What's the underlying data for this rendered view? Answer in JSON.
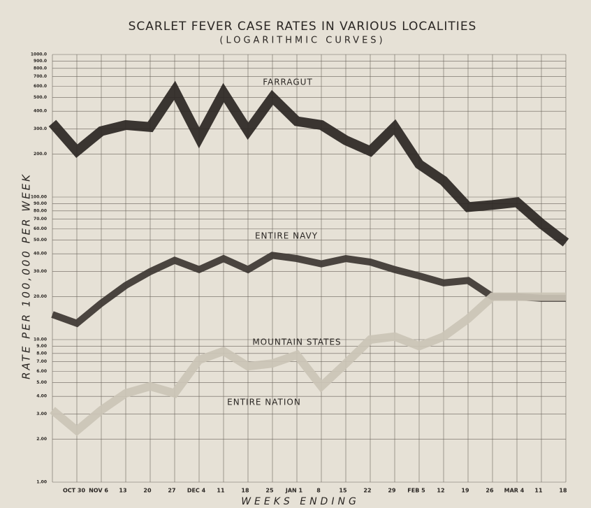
{
  "chart_data": {
    "type": "line",
    "title": "SCARLET FEVER CASE RATES IN VARIOUS LOCALITIES",
    "subtitle": "(LOGARITHMIC CURVES)",
    "x_label": "WEEKS ENDING",
    "y_label": "RATE PER 100,000 PER WEEK",
    "log_y": true,
    "grid": true,
    "categories": [
      null,
      "OCT 30",
      "NOV 6",
      "13",
      "20",
      "27",
      "DEC 4",
      "11",
      "18",
      "25",
      "JAN 1",
      "8",
      "15",
      "22",
      "29",
      "FEB 5",
      "12",
      "19",
      "26",
      "MAR 4",
      "11",
      "18"
    ],
    "series": [
      {
        "name": "FARRAGUT",
        "color": "#2b2623",
        "values": [
          330,
          210,
          290,
          320,
          310,
          560,
          260,
          540,
          290,
          500,
          340,
          320,
          250,
          210,
          310,
          170,
          130,
          85,
          88,
          92,
          65,
          48
        ]
      },
      {
        "name": "ENTIRE NAVY",
        "color": "#3d3632",
        "values": [
          15,
          13,
          18,
          24,
          30,
          36,
          31,
          37,
          31,
          39,
          37,
          34,
          37,
          35,
          31,
          28,
          25,
          26,
          20,
          20,
          19.5,
          19.5
        ]
      },
      {
        "name": "MOUNTAIN STATES",
        "color": "#cbc4b6",
        "values": [
          3.2,
          2.3,
          3.2,
          4.2,
          4.7,
          4.2,
          7.2,
          8.3,
          6.5,
          6.8,
          7.8,
          4.7,
          6.8,
          10,
          10.5,
          9,
          10.5,
          14,
          20,
          20,
          20,
          20
        ]
      }
    ],
    "annotations": [
      "FARRAGUT",
      "ENTIRE NAVY",
      "MOUNTAIN STATES",
      "ENTIRE NATION"
    ],
    "ylim": [
      1,
      1000
    ],
    "yticks": [
      {
        "value": 1,
        "label": "1.00"
      },
      {
        "value": 2,
        "label": "2.00"
      },
      {
        "value": 3,
        "label": "3.00"
      },
      {
        "value": 4,
        "label": "4.00"
      },
      {
        "value": 5,
        "label": "5.00"
      },
      {
        "value": 6,
        "label": "6.00"
      },
      {
        "value": 7,
        "label": "7.00"
      },
      {
        "value": 8,
        "label": "8.00"
      },
      {
        "value": 9,
        "label": "9.00"
      },
      {
        "value": 10,
        "label": "10.00"
      },
      {
        "value": 20,
        "label": "20.00"
      },
      {
        "value": 30,
        "label": "30.00"
      },
      {
        "value": 40,
        "label": "40.00"
      },
      {
        "value": 50,
        "label": "50.00"
      },
      {
        "value": 60,
        "label": "60.00"
      },
      {
        "value": 70,
        "label": "70.00"
      },
      {
        "value": 80,
        "label": "80.00"
      },
      {
        "value": 90,
        "label": "90.00"
      },
      {
        "value": 100,
        "label": "100.00"
      },
      {
        "value": 200,
        "label": "200.0"
      },
      {
        "value": 300,
        "label": "300.0"
      },
      {
        "value": 400,
        "label": "400.0"
      },
      {
        "value": 500,
        "label": "500.0"
      },
      {
        "value": 600,
        "label": "600.0"
      },
      {
        "value": 700,
        "label": "700.0"
      },
      {
        "value": 800,
        "label": "800.0"
      },
      {
        "value": 900,
        "label": "900.0"
      },
      {
        "value": 1000,
        "label": "1000.0"
      }
    ]
  }
}
